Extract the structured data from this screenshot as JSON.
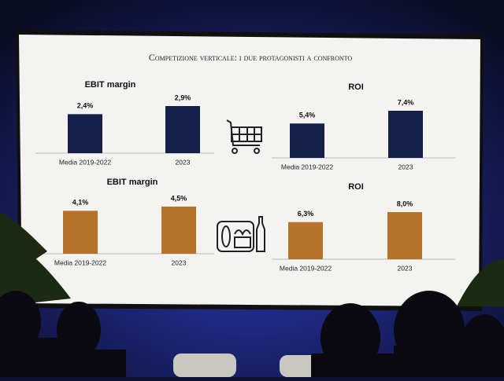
{
  "slide_title": "Competizione verticale: i due protagonisti a confronto",
  "chart_data": [
    {
      "type": "bar",
      "title": "EBIT margin",
      "categories": [
        "Media 2019-2022",
        "2023"
      ],
      "values": [
        2.4,
        2.9
      ],
      "value_labels": [
        "2,4%",
        "2,9%"
      ],
      "color": "#15204a"
    },
    {
      "type": "bar",
      "title": "ROI",
      "categories": [
        "Media 2019-2022",
        "2023"
      ],
      "values": [
        5.4,
        7.4
      ],
      "value_labels": [
        "5,4%",
        "7,4%"
      ],
      "color": "#15204a"
    },
    {
      "type": "bar",
      "title": "EBIT margin",
      "categories": [
        "Media 2019-2022",
        "2023"
      ],
      "values": [
        4.1,
        4.5
      ],
      "value_labels": [
        "4,1%",
        "4,5%"
      ],
      "color": "#b5722c"
    },
    {
      "type": "bar",
      "title": "ROI",
      "categories": [
        "Media 2019-2022",
        "2023"
      ],
      "values": [
        6.3,
        8.0
      ],
      "value_labels": [
        "6,3%",
        "8,0%"
      ],
      "color": "#b5722c"
    }
  ]
}
